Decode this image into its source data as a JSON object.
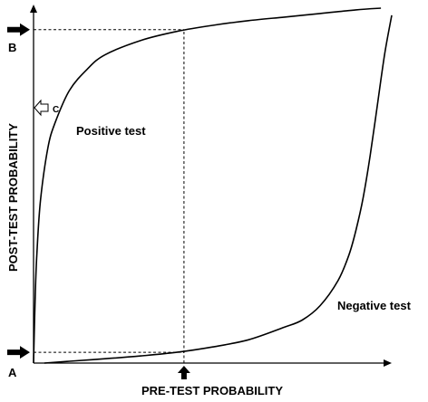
{
  "chart_data": {
    "type": "line",
    "xlabel": "PRE-TEST PROBABILITY",
    "ylabel": "POST-TEST PROBABILITY",
    "xlim": [
      0,
      1
    ],
    "ylim": [
      0,
      1
    ],
    "grid": false,
    "series": [
      {
        "name": "Positive test",
        "x": [
          0,
          0.005,
          0.01,
          0.02,
          0.04,
          0.06,
          0.1,
          0.15,
          0.2,
          0.3,
          0.4,
          0.5,
          0.6,
          0.7,
          0.8,
          0.9,
          0.97
        ],
        "y": [
          0,
          0.2,
          0.32,
          0.46,
          0.6,
          0.67,
          0.76,
          0.82,
          0.86,
          0.9,
          0.925,
          0.942,
          0.955,
          0.965,
          0.975,
          0.985,
          0.99
        ]
      },
      {
        "name": "Negative test",
        "x": [
          0.03,
          0.1,
          0.2,
          0.3,
          0.4,
          0.5,
          0.6,
          0.7,
          0.75,
          0.8,
          0.85,
          0.88,
          0.9,
          0.92,
          0.94,
          0.96,
          0.98,
          1.0
        ],
        "y": [
          0.0,
          0.005,
          0.012,
          0.02,
          0.03,
          0.045,
          0.065,
          0.1,
          0.12,
          0.16,
          0.23,
          0.3,
          0.37,
          0.46,
          0.58,
          0.72,
          0.86,
          0.97
        ]
      }
    ],
    "reference": {
      "pretest_x": 0.42,
      "posttest_positive_y": 0.93,
      "posttest_negative_y": 0.03
    },
    "annotations": {
      "origin_label": "A",
      "top_label": "B",
      "side_label": "C"
    }
  }
}
